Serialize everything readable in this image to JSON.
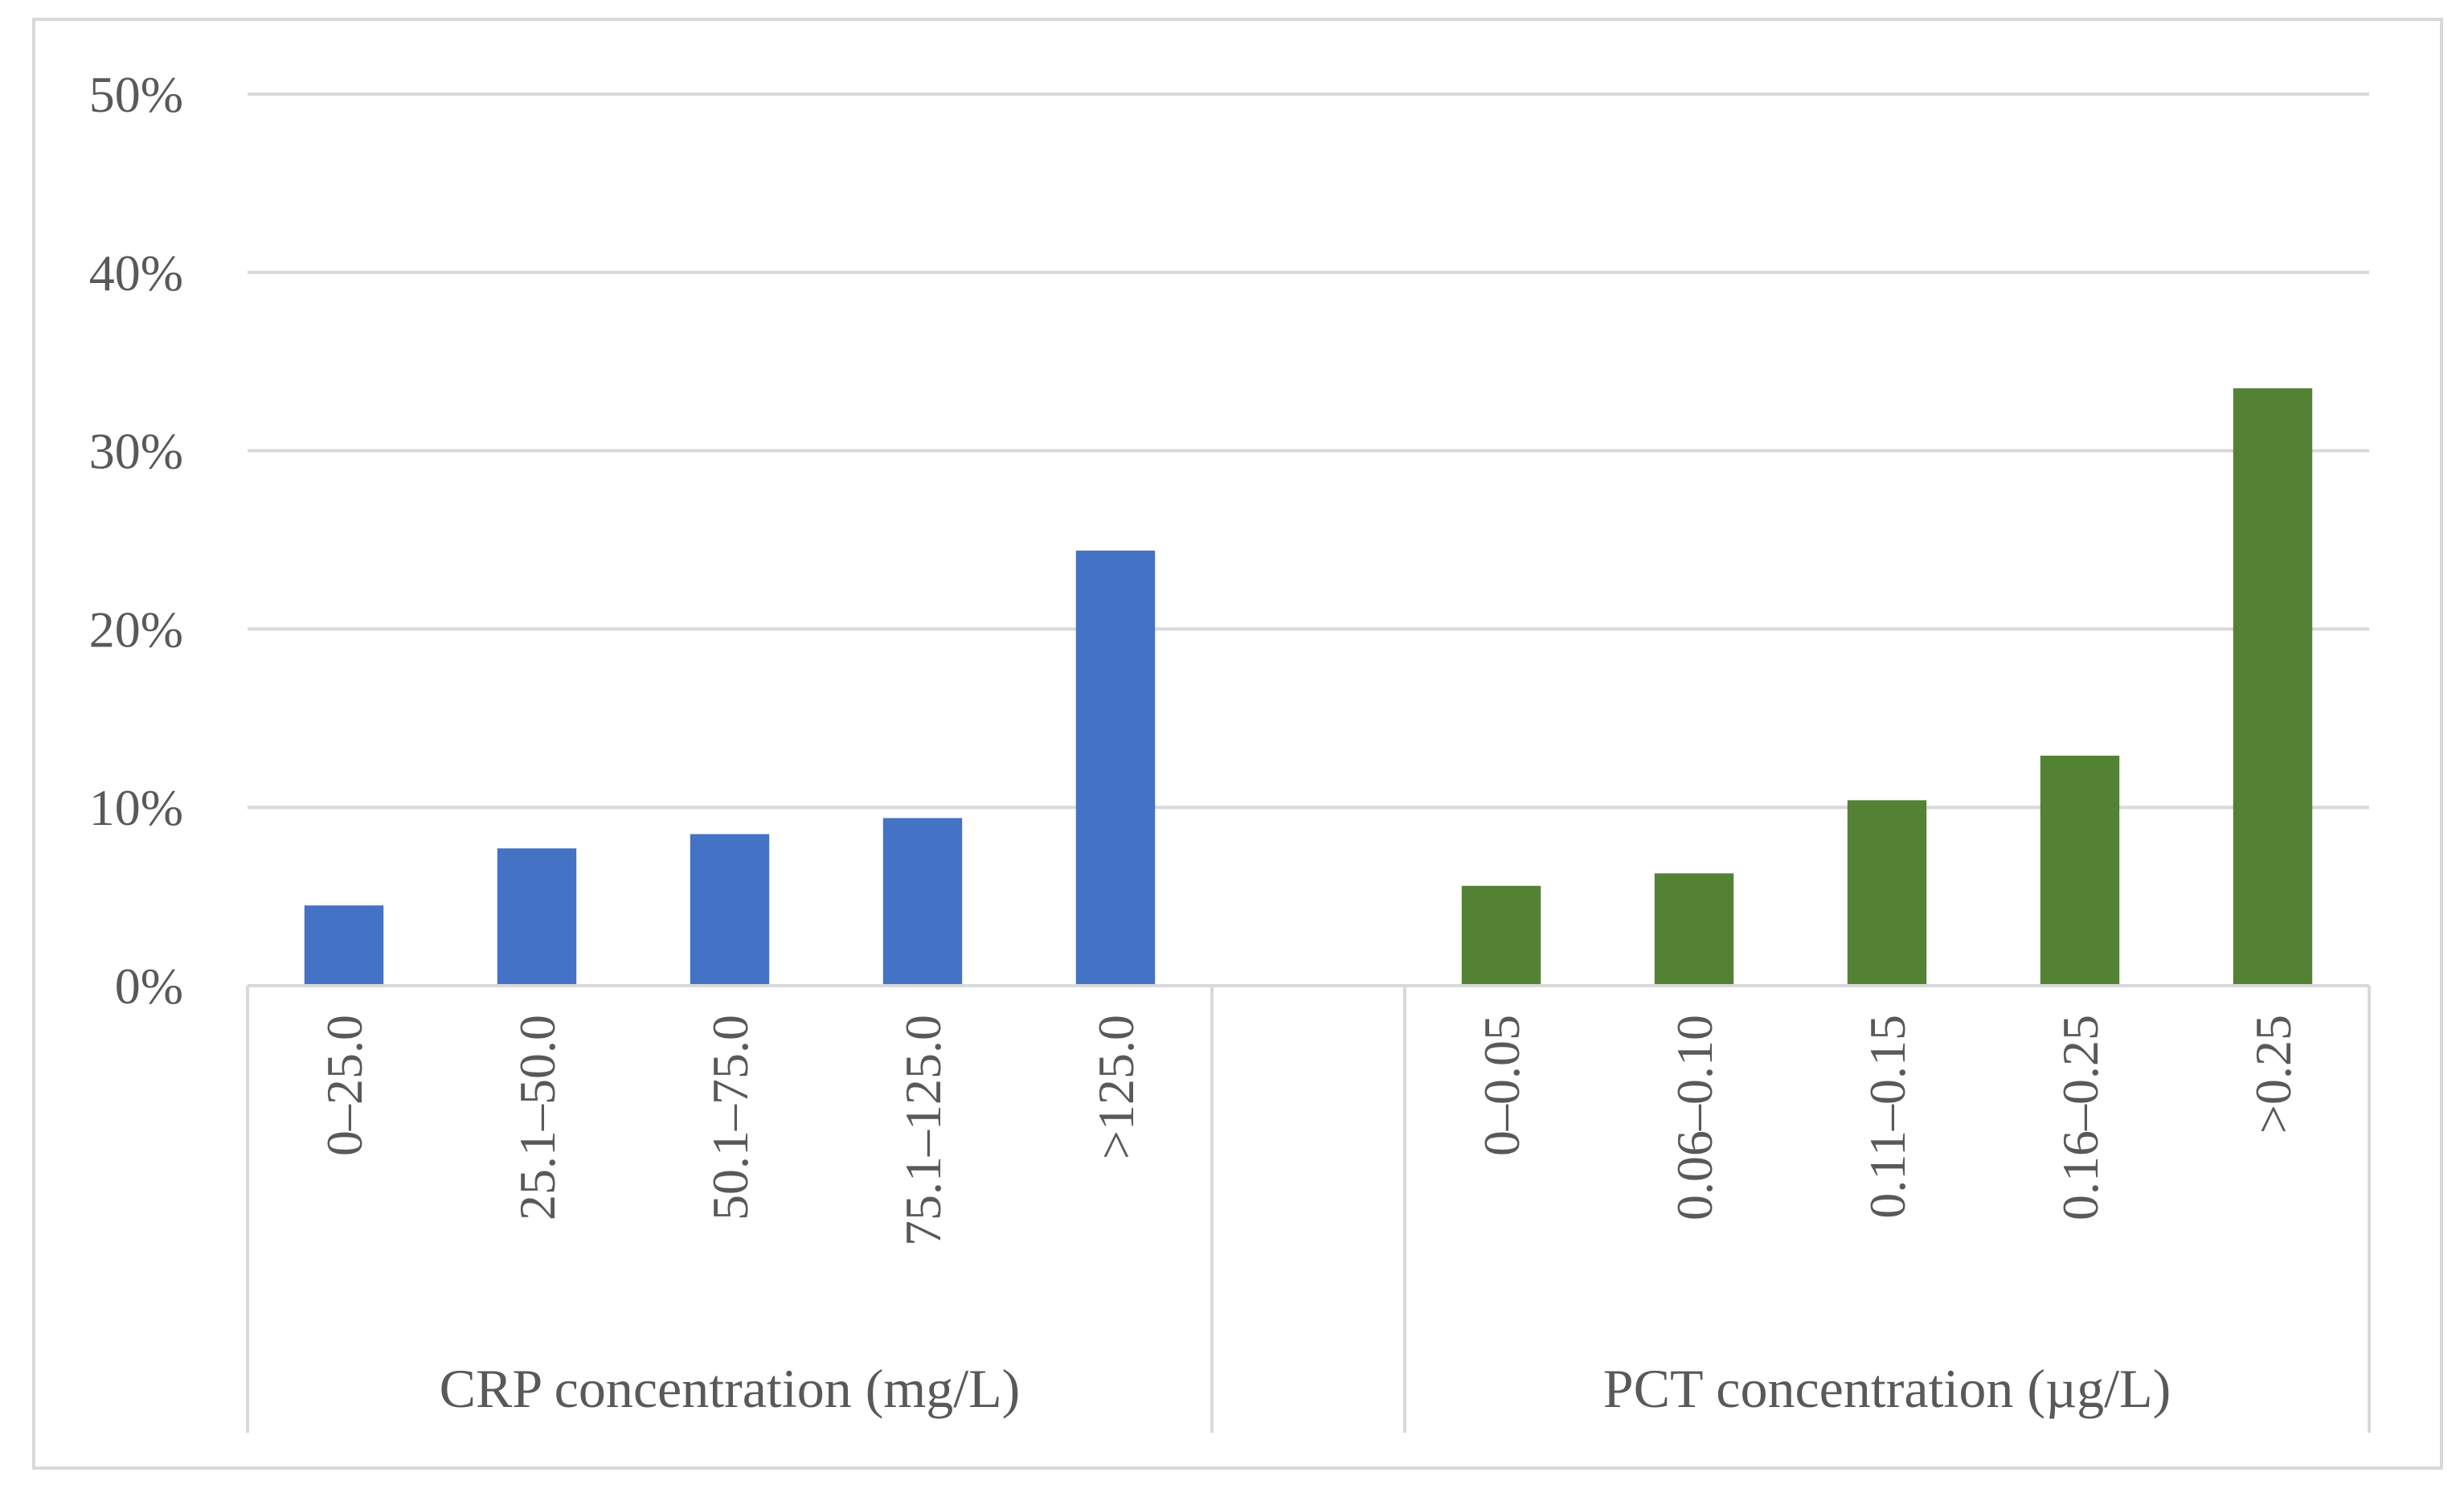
{
  "chart_data": {
    "type": "bar",
    "title": "",
    "xlabel": "",
    "ylabel": "",
    "ylim": [
      0,
      50
    ],
    "yticks": [
      "0%",
      "10%",
      "20%",
      "30%",
      "40%",
      "50%"
    ],
    "grid": true,
    "groups": [
      {
        "name": "CRP concentration (mg/L)",
        "color": "#4472c4",
        "categories": [
          "0–25.0",
          "25.1–50.0",
          "50.1–75.0",
          "75.1–125.0",
          ">125.0"
        ],
        "values": [
          4.5,
          7.7,
          8.5,
          9.4,
          24.4
        ]
      },
      {
        "name": "PCT concentration (µg/L)",
        "color": "#548235",
        "categories": [
          "0–0.05",
          "0.06–0.10",
          "0.11–0.15",
          "0.16–0.25",
          ">0.25"
        ],
        "values": [
          5.6,
          6.3,
          10.4,
          12.9,
          33.5
        ]
      }
    ]
  }
}
